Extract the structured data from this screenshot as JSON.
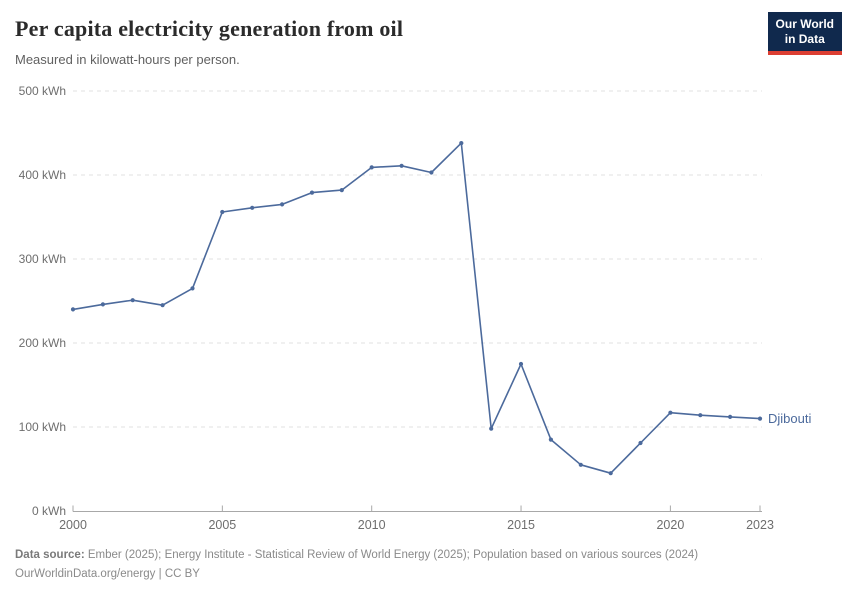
{
  "header": {
    "title": "Per capita electricity generation from oil",
    "subtitle": "Measured in kilowatt-hours per person.",
    "logo_line1": "Our World",
    "logo_line2": "in Data"
  },
  "chart_data": {
    "type": "line",
    "title": "Per capita electricity generation from oil",
    "ylabel": "kWh",
    "xlabel": "",
    "xlim": [
      2000,
      2023
    ],
    "ylim": [
      0,
      500
    ],
    "grid": true,
    "x_ticks": [
      2000,
      2005,
      2010,
      2015,
      2020,
      2023
    ],
    "y_ticks": [
      0,
      100,
      200,
      300,
      400,
      500
    ],
    "y_tick_suffix": " kWh",
    "legend_position": "end-of-line-label",
    "series": [
      {
        "name": "Djibouti",
        "color": "#4C6A9C",
        "x": [
          2000,
          2001,
          2002,
          2003,
          2004,
          2005,
          2006,
          2007,
          2008,
          2009,
          2010,
          2011,
          2012,
          2013,
          2014,
          2015,
          2016,
          2017,
          2018,
          2019,
          2020,
          2021,
          2022,
          2023
        ],
        "values": [
          240,
          246,
          251,
          245,
          265,
          356,
          361,
          365,
          379,
          382,
          409,
          411,
          403,
          438,
          98,
          175,
          85,
          55,
          45,
          81,
          117,
          114,
          112,
          110
        ]
      }
    ]
  },
  "footer": {
    "datasource_label": "Data source:",
    "datasource_text": " Ember (2025); Energy Institute - Statistical Review of World Energy (2025); Population based on various sources (2024)",
    "link_text": "OurWorldinData.org/energy",
    "separator": " | ",
    "license": "CC BY"
  },
  "colors": {
    "line": "#4C6A9C",
    "gridline": "#e2e2e2",
    "axis": "#a8a8a8",
    "tick_label": "#6e6e6e",
    "logo_bg": "#10294d",
    "logo_accent": "#dc3e32"
  }
}
